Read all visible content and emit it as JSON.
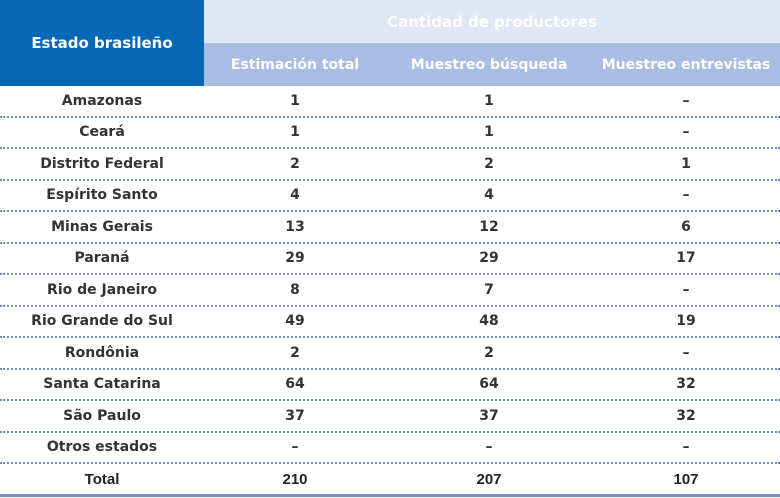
{
  "header": {
    "state_col": "Estado brasileño",
    "group": "Cantidad de productores",
    "cols": [
      "Estimación total",
      "Muestreo búsqueda",
      "Muestreo entrevistas"
    ]
  },
  "rows": [
    [
      "Amazonas",
      "1",
      "1",
      "–"
    ],
    [
      "Ceará",
      "1",
      "1",
      "–"
    ],
    [
      "Distrito Federal",
      "2",
      "2",
      "1"
    ],
    [
      "Espírito Santo",
      "4",
      "4",
      "–"
    ],
    [
      "Minas Gerais",
      "13",
      "12",
      "6"
    ],
    [
      "Paraná",
      "29",
      "29",
      "17"
    ],
    [
      "Rio de Janeiro",
      "8",
      "7",
      "–"
    ],
    [
      "Rio Grande do Sul",
      "49",
      "48",
      "19"
    ],
    [
      "Rondônia",
      "2",
      "2",
      "–"
    ],
    [
      "Santa Catarina",
      "64",
      "64",
      "32"
    ],
    [
      "São Paulo",
      "37",
      "37",
      "32"
    ],
    [
      "Otros estados",
      "–",
      "–",
      "–"
    ]
  ],
  "total": [
    "Total",
    "210",
    "207",
    "107"
  ],
  "colors": {
    "dark_blue": "#0868b8",
    "light_blue": "#dfe6f5",
    "mid_blue": "#a9bde2"
  }
}
